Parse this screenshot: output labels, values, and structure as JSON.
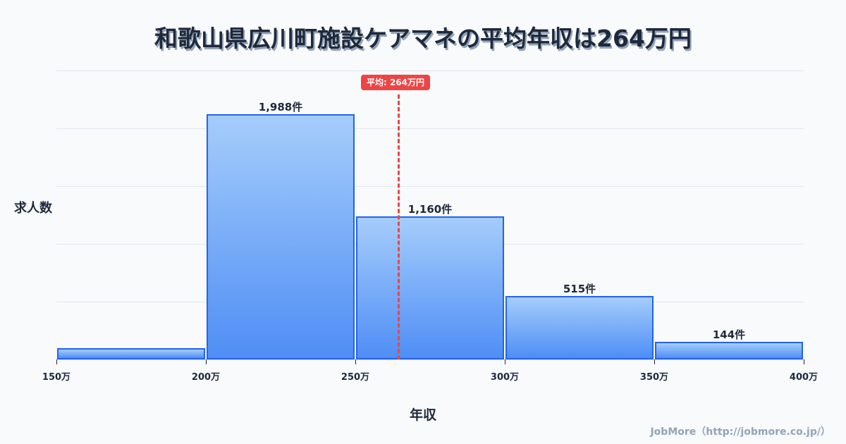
{
  "title": "和歌山県広川町施設ケアマネの平均年収は264万円",
  "mean_badge": "平均: 264万円",
  "ylabel": "求人数",
  "xlabel": "年収",
  "credit": "JobMore（http://jobmore.co.jp/）",
  "colors": {
    "bar_border": "#2563eb",
    "bar_top": "#a5cdfb",
    "bar_bottom": "#4f8ef5",
    "mean": "#ef4444",
    "text": "#1e293b"
  },
  "chart_data": {
    "type": "bar",
    "title": "和歌山県広川町施設ケアマネの平均年収は264万円",
    "xlabel": "年収",
    "ylabel": "求人数",
    "categories": [
      "150万-200万",
      "200万-250万",
      "250万-300万",
      "300万-350万",
      "350万-400万"
    ],
    "x_ticks": [
      "150万",
      "200万",
      "250万",
      "300万",
      "350万",
      "400万"
    ],
    "values": [
      91,
      1988,
      1160,
      515,
      144
    ],
    "value_labels": [
      "",
      "1,988件",
      "1,160件",
      "515件",
      "144件"
    ],
    "mean": 264,
    "mean_label": "平均: 264万円",
    "grid": true,
    "legend": "none"
  }
}
